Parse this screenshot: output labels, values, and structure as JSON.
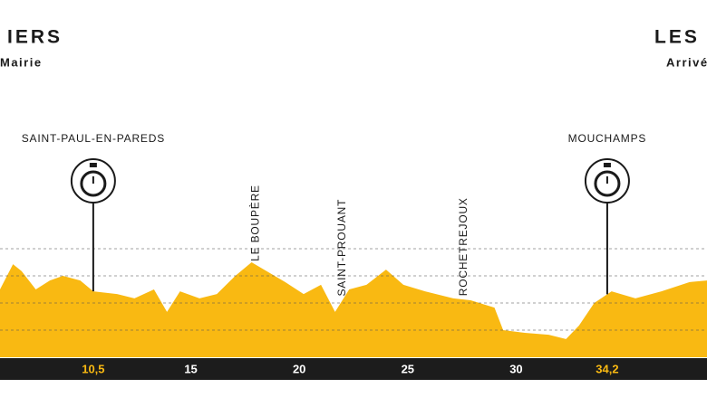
{
  "header": {
    "start_name": "IERS",
    "start_sub": "Mairie",
    "finish_name": "LES H",
    "finish_sub": "Arrivé"
  },
  "chart_data": {
    "type": "area",
    "color": "#f9b912",
    "x": [
      6.2,
      6.8,
      7.2,
      7.85,
      8.5,
      9.1,
      9.9,
      10.5,
      11.6,
      12.4,
      13.3,
      13.9,
      14.5,
      15.4,
      16.2,
      17.05,
      17.8,
      18.5,
      19.35,
      20.2,
      21.0,
      21.65,
      22.3,
      23.1,
      24.0,
      24.8,
      25.8,
      27.1,
      27.9,
      29.0,
      29.4,
      30.4,
      31.5,
      32.3,
      32.9,
      33.6,
      34.4,
      35.5,
      36.7,
      38.0,
      38.8
    ],
    "values": [
      2.5,
      3.43,
      3.17,
      2.5,
      2.83,
      3.0,
      2.83,
      2.43,
      2.33,
      2.17,
      2.5,
      1.67,
      2.43,
      2.17,
      2.33,
      3.0,
      3.5,
      3.17,
      2.77,
      2.33,
      2.67,
      1.67,
      2.5,
      2.67,
      3.23,
      2.67,
      2.43,
      2.17,
      2.1,
      1.83,
      1.0,
      0.9,
      0.83,
      0.67,
      1.17,
      2.0,
      2.43,
      2.17,
      2.43,
      2.77,
      2.83
    ],
    "xlim": [
      6.2,
      38.8
    ],
    "ylim": [
      0,
      4.5
    ],
    "yticks": [
      1,
      2,
      3,
      4
    ],
    "grid": true,
    "xticks": [
      {
        "value": 10.5,
        "label": "10,5"
      },
      15,
      20,
      25,
      30,
      {
        "value": 34.2,
        "label": "34,2"
      }
    ],
    "sprints": [
      {
        "name": "SAINT-PAUL-EN-PAREDS",
        "x": 10.5
      },
      {
        "name": "MOUCHAMPS",
        "x": 34.2
      }
    ],
    "towns": [
      {
        "name": "LE BOUPÈRE",
        "x": 18.0
      },
      {
        "name": "SAINT-PROUANT",
        "x": 22.0
      },
      {
        "name": "ROCHETREJOUX",
        "x": 27.6
      }
    ]
  }
}
